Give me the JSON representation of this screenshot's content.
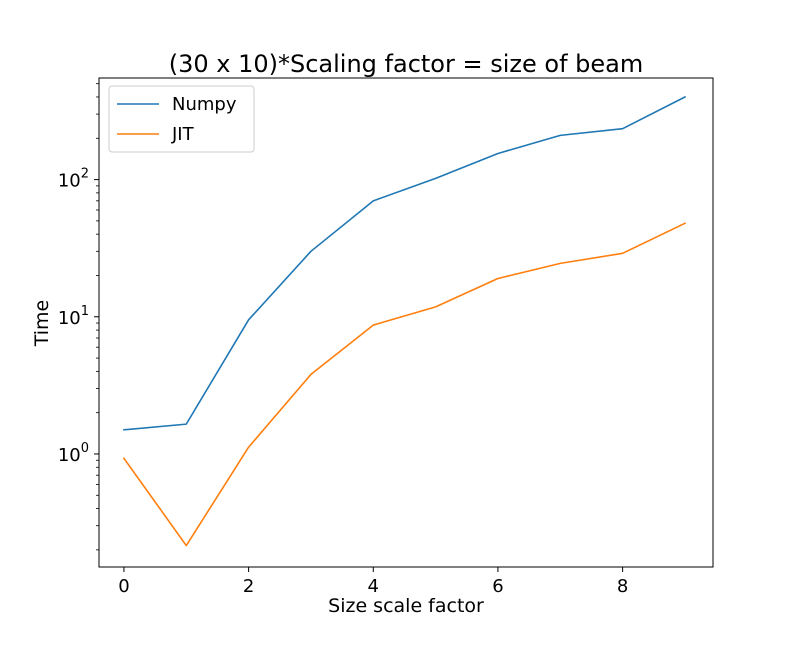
{
  "chart_data": {
    "type": "line",
    "title": "(30 x 10)*Scaling factor = size of beam",
    "xlabel": "Size scale factor",
    "ylabel": "Time",
    "x": [
      0,
      1,
      2,
      3,
      4,
      5,
      6,
      7,
      8,
      9
    ],
    "xlim": [
      -0.4,
      9.45
    ],
    "ylim": [
      0.15,
      550
    ],
    "yscale": "log",
    "x_ticks": [
      {
        "value": 0,
        "label": "0"
      },
      {
        "value": 2,
        "label": "2"
      },
      {
        "value": 4,
        "label": "4"
      },
      {
        "value": 6,
        "label": "6"
      },
      {
        "value": 8,
        "label": "8"
      }
    ],
    "y_ticks": [
      {
        "value": 1,
        "base": "10",
        "exp": "0"
      },
      {
        "value": 10,
        "base": "10",
        "exp": "1"
      },
      {
        "value": 100,
        "base": "10",
        "exp": "2"
      }
    ],
    "y_minor_ticks": [
      0.2,
      0.3,
      0.4,
      0.5,
      0.6,
      0.7,
      0.8,
      0.9,
      2,
      3,
      4,
      5,
      6,
      7,
      8,
      9,
      20,
      30,
      40,
      50,
      60,
      70,
      80,
      90,
      200,
      300,
      400,
      500
    ],
    "legend_position": "top-left",
    "grid": false,
    "series": [
      {
        "name": "Numpy",
        "color": "#1f77b4",
        "values": [
          1.5,
          1.65,
          9.5,
          30,
          70,
          102,
          155,
          210,
          235,
          400
        ]
      },
      {
        "name": "JIT",
        "color": "#ff7f0e",
        "values": [
          0.93,
          0.215,
          1.12,
          3.8,
          8.7,
          11.8,
          19,
          24.5,
          29,
          48
        ]
      }
    ]
  }
}
